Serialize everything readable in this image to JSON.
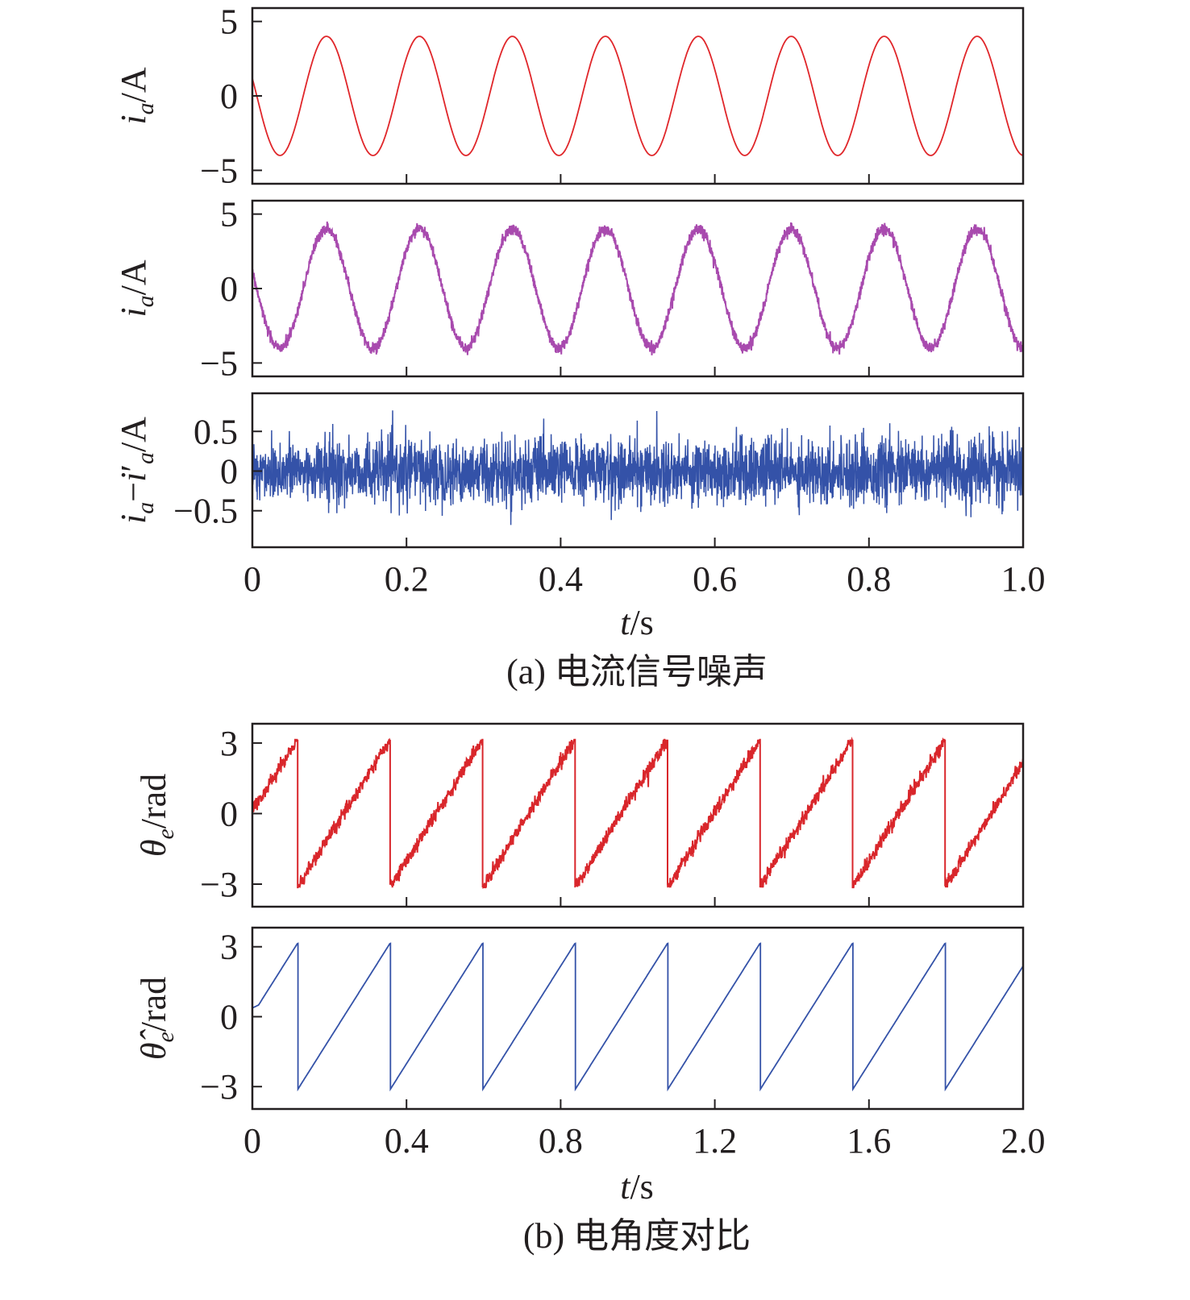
{
  "chart_data": [
    {
      "type": "line",
      "panel": "a1",
      "ylabel": [
        {
          "t": "i",
          "it": true
        },
        {
          "t": "a",
          "sub": true
        },
        {
          "t": "/A"
        }
      ],
      "x": {
        "range": [
          0,
          1.0
        ]
      },
      "ylim": [
        -5.9,
        5.9
      ],
      "yticks": [
        5,
        0,
        -5
      ],
      "ytick_labels": [
        "5",
        "0",
        "−5"
      ],
      "color": "#e0262a",
      "series": {
        "kind": "sine",
        "amplitude": 4,
        "period": 0.1206,
        "peak_time": 0.0962,
        "noise_std": 0
      }
    },
    {
      "type": "line",
      "panel": "a2",
      "ylabel": [
        {
          "t": "i",
          "it": true
        },
        {
          "t": "a",
          "sub": true
        },
        {
          "t": "/A"
        }
      ],
      "x": {
        "range": [
          0,
          1.0
        ]
      },
      "ylim": [
        -5.9,
        5.9
      ],
      "yticks": [
        5,
        0,
        -5
      ],
      "ytick_labels": [
        "5",
        "0",
        "−5"
      ],
      "color": "#a84aae",
      "series": {
        "kind": "sine",
        "amplitude": 4,
        "period": 0.1206,
        "peak_time": 0.0962,
        "noise_std": 0.2
      }
    },
    {
      "type": "line",
      "panel": "a3",
      "ylabel": [
        {
          "t": "i",
          "it": true
        },
        {
          "t": "a",
          "sub": true
        },
        {
          "t": "−"
        },
        {
          "t": "i",
          "it": true
        },
        {
          "t": "′"
        },
        {
          "t": "a",
          "sub": true
        },
        {
          "t": "/A"
        }
      ],
      "x": {
        "range": [
          0,
          1.0
        ]
      },
      "ylim": [
        -0.96,
        0.98
      ],
      "yticks": [
        0.5,
        0,
        -0.5
      ],
      "ytick_labels": [
        "0.5",
        "0",
        "−0.5"
      ],
      "color": "#3452a8",
      "series": {
        "kind": "noise",
        "noise_std": 0.2,
        "max_abs": 0.8
      }
    },
    {
      "type": "line",
      "panel": "b1",
      "ylabel": [
        {
          "t": "θ",
          "it": true
        },
        {
          "t": "e",
          "sub": true
        },
        {
          "t": "/rad"
        }
      ],
      "x": {
        "range": [
          0,
          2.0
        ]
      },
      "ylim": [
        -3.96,
        3.82
      ],
      "yticks": [
        3,
        0,
        -3
      ],
      "ytick_labels": [
        "3",
        "0",
        "−3"
      ],
      "color": "#d9262b",
      "series": {
        "kind": "sawtooth",
        "period": 0.24,
        "first_wrap": 0.117,
        "noise_std": 0.15
      }
    },
    {
      "type": "line",
      "panel": "b2",
      "ylabel": [
        {
          "t": "θ̂",
          "it": true
        },
        {
          "t": "e",
          "sub": true
        },
        {
          "t": "/rad"
        }
      ],
      "x": {
        "range": [
          0,
          2.0
        ]
      },
      "ylim": [
        -3.96,
        3.82
      ],
      "yticks": [
        3,
        0,
        -3
      ],
      "ytick_labels": [
        "3",
        "0",
        "−3"
      ],
      "color": "#3452a8",
      "series": {
        "kind": "sawtooth",
        "period": 0.24,
        "first_wrap": 0.117,
        "noise_std": 0
      }
    }
  ],
  "axes_a": {
    "xticks": [
      0,
      0.2,
      0.4,
      0.6,
      0.8,
      1.0
    ],
    "xtick_labels": [
      "0",
      "0.2",
      "0.4",
      "0.6",
      "0.8",
      "1.0"
    ],
    "xlabel_var": "t",
    "xlabel_unit": "/s",
    "caption": "(a) 电流信号噪声"
  },
  "axes_b": {
    "xticks": [
      0,
      0.4,
      0.8,
      1.2,
      1.6,
      2.0
    ],
    "xtick_labels": [
      "0",
      "0.4",
      "0.8",
      "1.2",
      "1.6",
      "2.0"
    ],
    "xlabel_var": "t",
    "xlabel_unit": "/s",
    "caption": "(b) 电角度对比"
  }
}
